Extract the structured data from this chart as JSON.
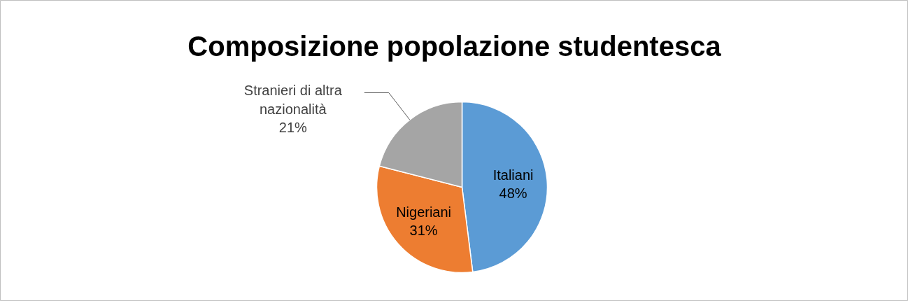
{
  "chart_data": {
    "type": "pie",
    "title": "Composizione popolazione studentesca",
    "categories": [
      "Italiani",
      "Nigeriani",
      "Stranieri di altra nazionalità"
    ],
    "values": [
      48,
      31,
      21
    ],
    "colors": [
      "#5b9bd5",
      "#ed7d31",
      "#a5a5a5"
    ],
    "value_labels": [
      "48%",
      "31%",
      "21%"
    ]
  }
}
